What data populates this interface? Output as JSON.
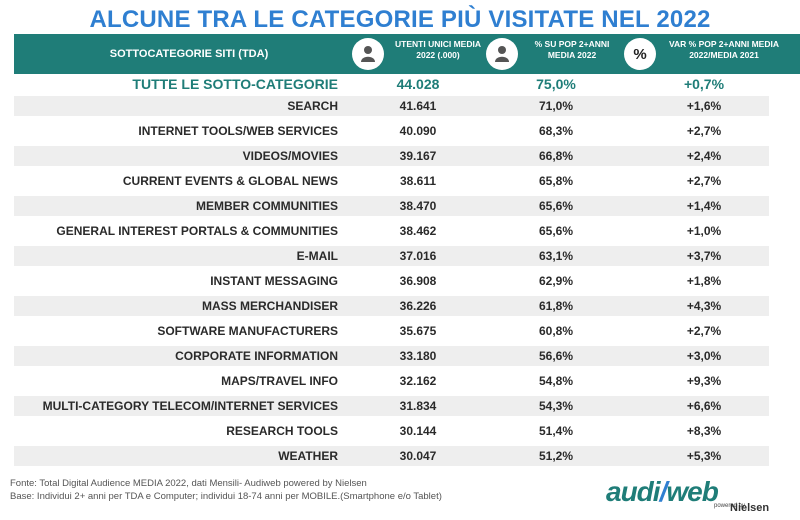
{
  "title": "ALCUNE TRA LE CATEGORIE PIÙ VISITATE NEL 2022",
  "header": {
    "sottocategorie": "SOTTOCATEGORIE SITI  (TDA)",
    "utenti": "UTENTI UNICI MEDIA 2022 (.000)",
    "pop": "% SU POP 2+ANNI MEDIA 2022",
    "pct_symbol": "%",
    "var": "VAR % POP 2+ANNI MEDIA 2022/MEDIA 2021"
  },
  "rows": [
    {
      "name": "TUTTE LE SOTTO-CATEGORIE",
      "utenti": "44.028",
      "pop": "75,0%",
      "var": "+0,7%"
    },
    {
      "name": "SEARCH",
      "utenti": "41.641",
      "pop": "71,0%",
      "var": "+1,6%"
    },
    {
      "name": "INTERNET TOOLS/WEB SERVICES",
      "utenti": "40.090",
      "pop": "68,3%",
      "var": "+2,7%"
    },
    {
      "name": "VIDEOS/MOVIES",
      "utenti": "39.167",
      "pop": "66,8%",
      "var": "+2,4%"
    },
    {
      "name": "CURRENT EVENTS & GLOBAL NEWS",
      "utenti": "38.611",
      "pop": "65,8%",
      "var": "+2,7%"
    },
    {
      "name": "MEMBER COMMUNITIES",
      "utenti": "38.470",
      "pop": "65,6%",
      "var": "+1,4%"
    },
    {
      "name": "GENERAL INTEREST PORTALS & COMMUNITIES",
      "utenti": "38.462",
      "pop": "65,6%",
      "var": "+1,0%"
    },
    {
      "name": "E-MAIL",
      "utenti": "37.016",
      "pop": "63,1%",
      "var": "+3,7%"
    },
    {
      "name": "INSTANT MESSAGING",
      "utenti": "36.908",
      "pop": "62,9%",
      "var": "+1,8%"
    },
    {
      "name": "MASS MERCHANDISER",
      "utenti": "36.226",
      "pop": "61,8%",
      "var": "+4,3%"
    },
    {
      "name": "SOFTWARE MANUFACTURERS",
      "utenti": "35.675",
      "pop": "60,8%",
      "var": "+2,7%"
    },
    {
      "name": "CORPORATE INFORMATION",
      "utenti": "33.180",
      "pop": "56,6%",
      "var": "+3,0%"
    },
    {
      "name": "MAPS/TRAVEL INFO",
      "utenti": "32.162",
      "pop": "54,8%",
      "var": "+9,3%"
    },
    {
      "name": "MULTI-CATEGORY TELECOM/INTERNET SERVICES",
      "utenti": "31.834",
      "pop": "54,3%",
      "var": "+6,6%"
    },
    {
      "name": "RESEARCH TOOLS",
      "utenti": "30.144",
      "pop": "51,4%",
      "var": "+8,3%"
    },
    {
      "name": "WEATHER",
      "utenti": "30.047",
      "pop": "51,2%",
      "var": "+5,3%"
    }
  ],
  "footer": {
    "fonte": "Fonte: Total Digital Audience MEDIA 2022, dati Mensili- Audiweb powered by Nielsen",
    "base": "Base:  Individui 2+ anni per TDA e Computer; individui 18-74 anni per MOBILE.(Smartphone e/o Tablet)"
  },
  "logo": {
    "main_a": "audi",
    "main_b": "web",
    "powered": "powered by",
    "nielsen": "Nielsen"
  },
  "colors": {
    "teal": "#1f7d78",
    "title_blue": "#2f7fd1",
    "row_shade": "#eeeeee"
  },
  "icons": [
    "person-icon",
    "person-icon",
    "percent-icon"
  ]
}
